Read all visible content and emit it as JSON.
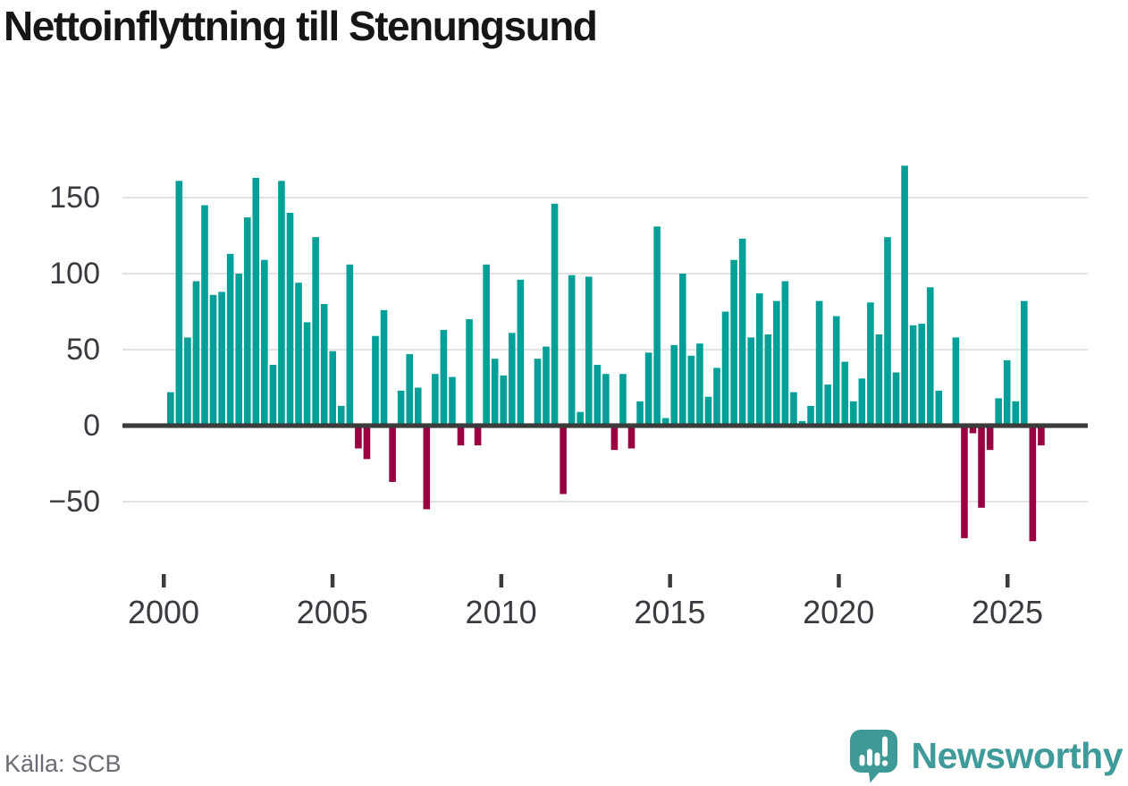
{
  "title": "Nettoinflyttning till Stenungsund",
  "source": "Källa: SCB",
  "brand": {
    "name": "Newsworthy"
  },
  "colors": {
    "positive_bar": "#00a099",
    "negative_bar": "#990042",
    "zero_axis": "#3b3b3b",
    "gridline": "#e3e3e3",
    "axis_text": "#3a3a40",
    "title_text": "#161616",
    "source_text": "#6b6b74",
    "brand_teal": "#3f9b99",
    "logo_bubble": "#3e9a96"
  },
  "chart_data": {
    "type": "bar",
    "title": "Nettoinflyttning till Stenungsund",
    "xlabel": "",
    "ylabel": "",
    "frequency": "quarterly",
    "first_bar_year": 2000,
    "x_tick_labels": [
      "2000",
      "2005",
      "2010",
      "2015",
      "2020",
      "2025"
    ],
    "y_ticks": [
      150,
      100,
      50,
      0,
      -50
    ],
    "y_tick_labels": [
      "150",
      "100",
      "50",
      "0",
      "−50"
    ],
    "ylim": [
      -85,
      175
    ],
    "grid": true,
    "legend": null,
    "values": [
      22,
      161,
      58,
      95,
      145,
      86,
      88,
      113,
      100,
      137,
      163,
      109,
      40,
      161,
      140,
      94,
      68,
      124,
      80,
      49,
      13,
      106,
      -15,
      -22,
      59,
      76,
      -37,
      23,
      47,
      25,
      -55,
      34,
      63,
      32,
      -13,
      70,
      -13,
      106,
      44,
      33,
      61,
      96,
      0,
      44,
      52,
      146,
      -45,
      99,
      9,
      98,
      40,
      34,
      -16,
      34,
      -15,
      16,
      48,
      131,
      5,
      53,
      100,
      46,
      54,
      19,
      38,
      75,
      109,
      123,
      58,
      87,
      60,
      82,
      95,
      22,
      3,
      13,
      82,
      27,
      72,
      42,
      16,
      31,
      81,
      60,
      124,
      35,
      171,
      66,
      67,
      91,
      23,
      0,
      58,
      -74,
      -5,
      -54,
      -16,
      18,
      43,
      16,
      82,
      -76,
      -13
    ]
  }
}
